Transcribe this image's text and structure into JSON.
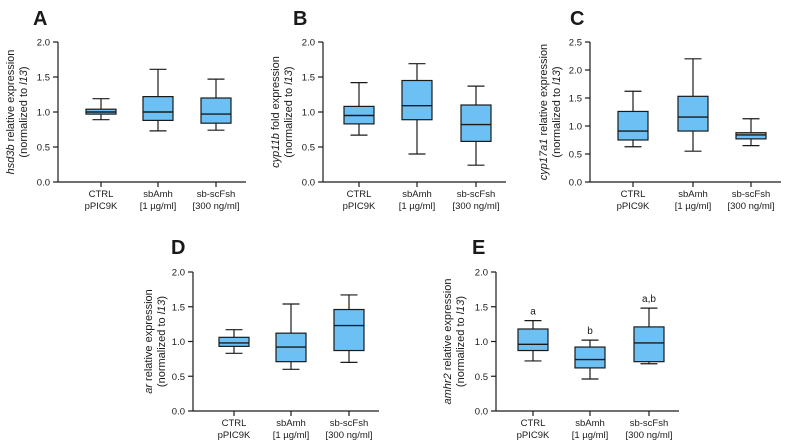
{
  "chart_data": [
    {
      "type": "boxplot",
      "panel": "A",
      "ylabel_prefix": "hsd3b",
      "ylabel_suffix": " relative expression",
      "ylabel_line2_prefix": "(normalized to ",
      "ylabel_line2_gene": "l13",
      "ylabel_line2_suffix": ")",
      "ylim": [
        0,
        2.0
      ],
      "ticks": [
        "0.0",
        "0.5",
        "1.0",
        "1.5",
        "2.0"
      ],
      "categories": [
        {
          "line1": "CTRL",
          "line2": "pPIC9K"
        },
        {
          "line1": "sbAmh",
          "line2": "[1 µg/ml]"
        },
        {
          "line1": "sb-scFsh",
          "line2": "[300 ng/ml]"
        }
      ],
      "boxes": [
        {
          "min": 0.89,
          "q1": 0.97,
          "median": 1.0,
          "q3": 1.04,
          "max": 1.19,
          "label": ""
        },
        {
          "min": 0.73,
          "q1": 0.88,
          "median": 1.0,
          "q3": 1.22,
          "max": 1.61,
          "label": ""
        },
        {
          "min": 0.74,
          "q1": 0.84,
          "median": 0.97,
          "q3": 1.2,
          "max": 1.47,
          "label": ""
        }
      ]
    },
    {
      "type": "boxplot",
      "panel": "B",
      "ylabel_prefix": "cyp11b",
      "ylabel_suffix": " fold expression",
      "ylabel_line2_prefix": "(normalized to ",
      "ylabel_line2_gene": "l13",
      "ylabel_line2_suffix": ")",
      "ylim": [
        0,
        2.0
      ],
      "ticks": [
        "0.0",
        "0.5",
        "1.0",
        "1.5",
        "2.0"
      ],
      "categories": [
        {
          "line1": "CTRL",
          "line2": "pPIC9K"
        },
        {
          "line1": "sbAmh",
          "line2": "[1 µg/ml]"
        },
        {
          "line1": "sb-scFsh",
          "line2": "[300 ng/ml]"
        }
      ],
      "boxes": [
        {
          "min": 0.67,
          "q1": 0.83,
          "median": 0.95,
          "q3": 1.08,
          "max": 1.42,
          "label": ""
        },
        {
          "min": 0.4,
          "q1": 0.89,
          "median": 1.09,
          "q3": 1.45,
          "max": 1.69,
          "label": ""
        },
        {
          "min": 0.24,
          "q1": 0.58,
          "median": 0.82,
          "q3": 1.1,
          "max": 1.37,
          "label": ""
        }
      ]
    },
    {
      "type": "boxplot",
      "panel": "C",
      "ylabel_prefix": "cyp17a1",
      "ylabel_suffix": " relative expression",
      "ylabel_line2_prefix": "(normalized to ",
      "ylabel_line2_gene": "l13",
      "ylabel_line2_suffix": ")",
      "ylim": [
        0,
        2.5
      ],
      "ticks": [
        "0.0",
        "0.5",
        "1.0",
        "1.5",
        "2.0",
        "2.5"
      ],
      "categories": [
        {
          "line1": "CTRL",
          "line2": "pPIC9K"
        },
        {
          "line1": "sbAmh",
          "line2": "[1 µg/ml]"
        },
        {
          "line1": "sb-scFsh",
          "line2": "[300 ng/ml]"
        }
      ],
      "boxes": [
        {
          "min": 0.63,
          "q1": 0.75,
          "median": 0.91,
          "q3": 1.26,
          "max": 1.62,
          "label": ""
        },
        {
          "min": 0.55,
          "q1": 0.91,
          "median": 1.16,
          "q3": 1.53,
          "max": 2.2,
          "label": ""
        },
        {
          "min": 0.65,
          "q1": 0.77,
          "median": 0.84,
          "q3": 0.88,
          "max": 1.13,
          "label": ""
        }
      ]
    },
    {
      "type": "boxplot",
      "panel": "D",
      "ylabel_prefix": "ar",
      "ylabel_suffix": " relative expression",
      "ylabel_line2_prefix": "(normalized to ",
      "ylabel_line2_gene": "l13",
      "ylabel_line2_suffix": ")",
      "ylim": [
        0,
        2.0
      ],
      "ticks": [
        "0.0",
        "0.5",
        "1.0",
        "1.5",
        "2.0"
      ],
      "categories": [
        {
          "line1": "CTRL",
          "line2": "pPIC9K"
        },
        {
          "line1": "sbAmh",
          "line2": "[1 µg/ml]"
        },
        {
          "line1": "sb-scFsh",
          "line2": "[300 ng/ml]"
        }
      ],
      "boxes": [
        {
          "min": 0.83,
          "q1": 0.93,
          "median": 0.98,
          "q3": 1.06,
          "max": 1.17,
          "label": ""
        },
        {
          "min": 0.6,
          "q1": 0.71,
          "median": 0.92,
          "q3": 1.12,
          "max": 1.54,
          "label": ""
        },
        {
          "min": 0.7,
          "q1": 0.87,
          "median": 1.23,
          "q3": 1.46,
          "max": 1.67,
          "label": ""
        }
      ]
    },
    {
      "type": "boxplot",
      "panel": "E",
      "ylabel_prefix": "amhr2",
      "ylabel_suffix": " relative expression",
      "ylabel_line2_prefix": "(normalized to ",
      "ylabel_line2_gene": "l13",
      "ylabel_line2_suffix": ")",
      "ylim": [
        0,
        2.0
      ],
      "ticks": [
        "0.0",
        "0.5",
        "1.0",
        "1.5",
        "2.0"
      ],
      "categories": [
        {
          "line1": "CTRL",
          "line2": "pPIC9K"
        },
        {
          "line1": "sbAmh",
          "line2": "[1 µg/ml]"
        },
        {
          "line1": "sb-scFsh",
          "line2": "[300 ng/ml]"
        }
      ],
      "boxes": [
        {
          "min": 0.72,
          "q1": 0.87,
          "median": 0.96,
          "q3": 1.18,
          "max": 1.3,
          "label": "a"
        },
        {
          "min": 0.46,
          "q1": 0.62,
          "median": 0.74,
          "q3": 0.92,
          "max": 1.02,
          "label": "b"
        },
        {
          "min": 0.68,
          "q1": 0.71,
          "median": 0.98,
          "q3": 1.21,
          "max": 1.48,
          "label": "a,b"
        }
      ]
    }
  ]
}
